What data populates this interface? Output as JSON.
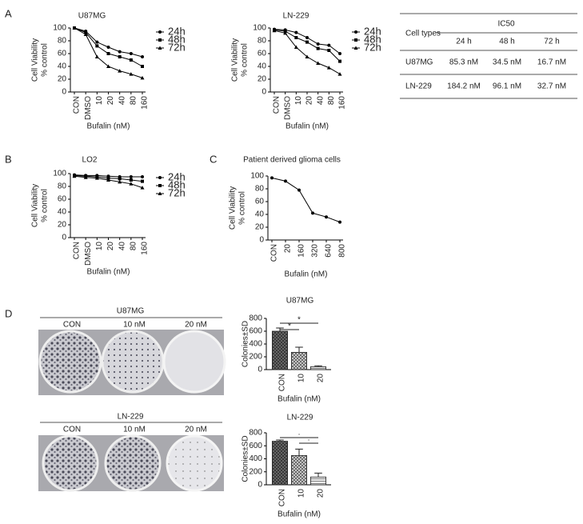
{
  "panel_labels": [
    "A",
    "B",
    "C",
    "D"
  ],
  "chart_data": [
    {
      "type": "line",
      "title": "U87MG",
      "xlabel": "Bufalin (nM)",
      "ylabel": [
        "Cell Viability",
        "% control"
      ],
      "categories": [
        "CON",
        "DMSO",
        "10",
        "20",
        "40",
        "80",
        "160"
      ],
      "series": [
        {
          "name": "24h",
          "color": "#000000",
          "marker": "circle",
          "values": [
            100,
            95,
            78,
            70,
            63,
            60,
            55
          ]
        },
        {
          "name": "48h",
          "color": "#000000",
          "marker": "square",
          "values": [
            100,
            93,
            72,
            60,
            55,
            50,
            40
          ]
        },
        {
          "name": "72h",
          "color": "#000000",
          "marker": "triangle",
          "values": [
            100,
            90,
            55,
            40,
            33,
            28,
            22
          ]
        }
      ],
      "ylim": [
        0,
        100
      ],
      "yticks": [
        0,
        20,
        40,
        60,
        80,
        100
      ]
    },
    {
      "type": "line",
      "title": "LN-229",
      "xlabel": "Bufalin (nM)",
      "ylabel": [
        "Cell Viability",
        "% control"
      ],
      "categories": [
        "CON",
        "DMSO",
        "10",
        "20",
        "40",
        "80",
        "160"
      ],
      "series": [
        {
          "name": "24h",
          "color": "#000000",
          "marker": "circle",
          "values": [
            98,
            97,
            93,
            85,
            75,
            73,
            60
          ]
        },
        {
          "name": "48h",
          "color": "#000000",
          "marker": "square",
          "values": [
            97,
            95,
            85,
            78,
            68,
            65,
            48
          ]
        },
        {
          "name": "72h",
          "color": "#000000",
          "marker": "triangle",
          "values": [
            96,
            92,
            70,
            55,
            45,
            38,
            28
          ]
        }
      ],
      "ylim": [
        0,
        100
      ],
      "yticks": [
        0,
        20,
        40,
        60,
        80,
        100
      ]
    },
    {
      "type": "line",
      "title": "LO2",
      "xlabel": "Bufalin (nM)",
      "ylabel": [
        "Cell Viability",
        "% control"
      ],
      "categories": [
        "CON",
        "DMSO",
        "10",
        "20",
        "40",
        "80",
        "160"
      ],
      "series": [
        {
          "name": "24h",
          "color": "#000000",
          "marker": "circle",
          "values": [
            98,
            97,
            97,
            96,
            95,
            95,
            95
          ]
        },
        {
          "name": "48h",
          "color": "#000000",
          "marker": "square",
          "values": [
            97,
            96,
            95,
            93,
            92,
            90,
            88
          ]
        },
        {
          "name": "72h",
          "color": "#000000",
          "marker": "triangle",
          "values": [
            96,
            94,
            93,
            90,
            87,
            84,
            78
          ]
        }
      ],
      "ylim": [
        0,
        100
      ],
      "yticks": [
        0,
        20,
        40,
        60,
        80,
        100
      ]
    },
    {
      "type": "line",
      "title": "Patient derived glioma cells",
      "xlabel": "Bufalin (nM)",
      "ylabel": [
        "Cell Viability",
        "% control"
      ],
      "categories": [
        "CON",
        "20",
        "160",
        "320",
        "640",
        "800"
      ],
      "series": [
        {
          "color": "#000000",
          "marker": "circle",
          "values": [
            97,
            92,
            78,
            42,
            36,
            28
          ]
        }
      ],
      "ylim": [
        0,
        100
      ],
      "yticks": [
        0,
        20,
        40,
        60,
        80,
        100
      ]
    },
    {
      "type": "bar",
      "title": "U87MG",
      "xlabel": "Bufalin (nM)",
      "ylabel": [
        "Colonies±SD"
      ],
      "categories": [
        "CON",
        "10",
        "20"
      ],
      "values": [
        600,
        270,
        45
      ],
      "errors": [
        50,
        80,
        15
      ],
      "annotations": [
        "*",
        "*"
      ],
      "ylim": [
        0,
        800
      ],
      "yticks": [
        0,
        200,
        400,
        600,
        800
      ]
    },
    {
      "type": "bar",
      "title": "LN-229",
      "xlabel": "Bufalin (nM)",
      "ylabel": [
        "Colonies±SD"
      ],
      "categories": [
        "CON",
        "10",
        "20"
      ],
      "values": [
        670,
        450,
        120
      ],
      "errors": [
        20,
        100,
        60
      ],
      "annotations": [
        "·",
        "·"
      ],
      "ylim": [
        0,
        800
      ],
      "yticks": [
        0,
        200,
        400,
        600,
        800
      ]
    }
  ],
  "ic50_table": {
    "title": "IC50",
    "header": [
      "Cell types",
      "24 h",
      "48 h",
      "72 h"
    ],
    "rows": [
      [
        "U87MG",
        "85.3 nM",
        "34.5 nM",
        "16.7 nM"
      ],
      [
        "LN-229",
        "184.2 nM",
        "96.1 nM",
        "32.7 nM"
      ]
    ]
  },
  "colony_images": [
    {
      "title": "U87MG",
      "labels": [
        "CON",
        "10 nM",
        "20 nM"
      ]
    },
    {
      "title": "LN-229",
      "labels": [
        "CON",
        "10 nM",
        "20 nM"
      ]
    }
  ]
}
